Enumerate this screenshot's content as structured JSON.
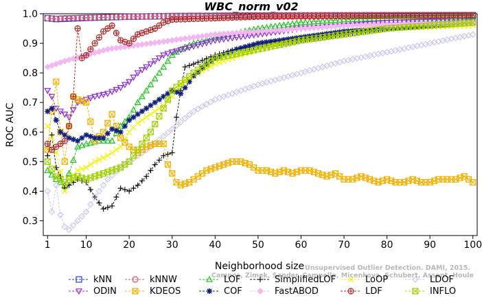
{
  "chart_data": {
    "type": "line",
    "title": "WBC_norm_v02",
    "xlabel": "Neighborhood size",
    "ylabel": "ROC AUC",
    "xlim": [
      0,
      101
    ],
    "ylim": [
      0.25,
      1.0
    ],
    "x_ticks": [
      1,
      10,
      20,
      30,
      40,
      50,
      60,
      70,
      80,
      90,
      100
    ],
    "y_ticks": [
      0.3,
      0.4,
      0.5,
      0.6,
      0.7,
      0.8,
      0.9,
      1.0
    ],
    "grid": false,
    "legend_position": "bottom",
    "watermark": [
      "Unsupervised Outlier Detection. DAMI, 2015.",
      "Campos, Zimek, Sander, Campello, Micenkova, Schubert, Assent, Houle"
    ],
    "series": [
      {
        "name": "kNN",
        "color": "#1f3fd6",
        "marker": "square",
        "x": [
          1,
          3,
          5,
          10,
          20,
          30,
          50,
          100
        ],
        "values": [
          0.985,
          0.982,
          0.983,
          0.986,
          0.99,
          0.992,
          0.994,
          0.995
        ]
      },
      {
        "name": "kNNW",
        "color": "#e0506a",
        "marker": "circle",
        "x": [
          1,
          2,
          3,
          5,
          10,
          20,
          30,
          50,
          100
        ],
        "values": [
          0.985,
          0.984,
          0.983,
          0.985,
          0.987,
          0.99,
          0.992,
          0.994,
          0.995
        ]
      },
      {
        "name": "LOF",
        "color": "#1ec41e",
        "marker": "triangle-up",
        "x": [
          1,
          3,
          5,
          6,
          8,
          10,
          13,
          16,
          18,
          20,
          22,
          24,
          26,
          28,
          30,
          32,
          35,
          40,
          50,
          60,
          70,
          80,
          100
        ],
        "values": [
          0.47,
          0.44,
          0.42,
          0.46,
          0.55,
          0.56,
          0.57,
          0.57,
          0.62,
          0.65,
          0.7,
          0.74,
          0.78,
          0.82,
          0.86,
          0.88,
          0.9,
          0.92,
          0.95,
          0.97,
          0.98,
          0.985,
          0.99
        ]
      },
      {
        "name": "SimplifiedLOF",
        "color": "#111111",
        "marker": "plus",
        "x": [
          1,
          2,
          3,
          4,
          5,
          6,
          8,
          10,
          12,
          14,
          16,
          18,
          20,
          22,
          24,
          26,
          28,
          30,
          31,
          32,
          33,
          35,
          40,
          45,
          50,
          60,
          70,
          80,
          100
        ],
        "values": [
          0.52,
          0.59,
          0.48,
          0.45,
          0.41,
          0.42,
          0.44,
          0.43,
          0.38,
          0.34,
          0.35,
          0.41,
          0.4,
          0.42,
          0.45,
          0.49,
          0.52,
          0.53,
          0.65,
          0.74,
          0.82,
          0.83,
          0.86,
          0.88,
          0.89,
          0.91,
          0.93,
          0.95,
          0.97
        ]
      },
      {
        "name": "LoOP",
        "color": "#f2f200",
        "marker": "x",
        "x": [
          1,
          2,
          3,
          5,
          6,
          8,
          10,
          12,
          15,
          18,
          20,
          22,
          25,
          28,
          30,
          32,
          35,
          40,
          50,
          60,
          70,
          80,
          100
        ],
        "values": [
          0.62,
          0.58,
          0.53,
          0.4,
          0.44,
          0.47,
          0.48,
          0.5,
          0.52,
          0.55,
          0.6,
          0.63,
          0.66,
          0.69,
          0.72,
          0.76,
          0.79,
          0.83,
          0.88,
          0.92,
          0.94,
          0.95,
          0.96
        ]
      },
      {
        "name": "LDOF",
        "color": "#c8c8ee",
        "marker": "diamond",
        "x": [
          1,
          2,
          3,
          4,
          5,
          6,
          8,
          10,
          12,
          15,
          18,
          20,
          25,
          30,
          35,
          40,
          50,
          60,
          70,
          80,
          90,
          100
        ],
        "values": [
          0.4,
          0.33,
          0.42,
          0.32,
          0.28,
          0.27,
          0.3,
          0.33,
          0.38,
          0.44,
          0.48,
          0.5,
          0.55,
          0.61,
          0.67,
          0.71,
          0.76,
          0.8,
          0.84,
          0.87,
          0.9,
          0.93
        ]
      },
      {
        "name": "ODIN",
        "color": "#8a2ad6",
        "marker": "triangle-down",
        "x": [
          1,
          2,
          3,
          5,
          6,
          8,
          10,
          12,
          15,
          18,
          20,
          22,
          24,
          26,
          28,
          30,
          35,
          40,
          50,
          60,
          70,
          80,
          100
        ],
        "values": [
          0.74,
          0.72,
          0.68,
          0.66,
          0.65,
          0.7,
          0.71,
          0.72,
          0.73,
          0.75,
          0.77,
          0.8,
          0.82,
          0.84,
          0.86,
          0.87,
          0.89,
          0.91,
          0.93,
          0.95,
          0.96,
          0.97,
          0.98
        ]
      },
      {
        "name": "KDEOS",
        "color": "#f2b000",
        "marker": "square-x",
        "x": [
          1,
          2,
          3,
          4,
          5,
          6,
          7,
          8,
          10,
          12,
          14,
          16,
          18,
          20,
          22,
          24,
          26,
          28,
          29,
          30,
          31,
          32,
          34,
          36,
          38,
          40,
          42,
          44,
          46,
          48,
          50,
          52,
          54,
          56,
          58,
          60,
          62,
          64,
          66,
          68,
          70,
          72,
          74,
          76,
          78,
          80,
          82,
          84,
          86,
          88,
          90,
          92,
          94,
          96,
          98,
          100
        ],
        "values": [
          0.54,
          0.67,
          0.77,
          0.6,
          0.5,
          0.62,
          0.72,
          0.71,
          0.7,
          0.57,
          0.6,
          0.66,
          0.58,
          0.55,
          0.53,
          0.55,
          0.56,
          0.56,
          0.49,
          0.46,
          0.43,
          0.42,
          0.43,
          0.45,
          0.47,
          0.48,
          0.49,
          0.5,
          0.5,
          0.49,
          0.47,
          0.47,
          0.46,
          0.47,
          0.46,
          0.47,
          0.47,
          0.46,
          0.45,
          0.46,
          0.44,
          0.44,
          0.45,
          0.44,
          0.43,
          0.44,
          0.43,
          0.43,
          0.44,
          0.43,
          0.43,
          0.44,
          0.44,
          0.44,
          0.45,
          0.43
        ]
      },
      {
        "name": "COF",
        "color": "#10207a",
        "marker": "star",
        "x": [
          1,
          2,
          3,
          4,
          5,
          6,
          8,
          10,
          12,
          14,
          16,
          18,
          20,
          22,
          24,
          26,
          28,
          30,
          32,
          35,
          38,
          40,
          45,
          50,
          55,
          60,
          70,
          80,
          90,
          100
        ],
        "values": [
          0.67,
          0.68,
          0.64,
          0.6,
          0.59,
          0.58,
          0.57,
          0.59,
          0.58,
          0.58,
          0.61,
          0.6,
          0.64,
          0.66,
          0.68,
          0.7,
          0.72,
          0.74,
          0.73,
          0.79,
          0.83,
          0.85,
          0.88,
          0.9,
          0.91,
          0.92,
          0.94,
          0.95,
          0.96,
          0.97
        ]
      },
      {
        "name": "FastABOD",
        "color": "#f2b8f2",
        "marker": "diamond-filled",
        "x": [
          1,
          5,
          10,
          15,
          20,
          25,
          30,
          40,
          50,
          70,
          100
        ],
        "values": [
          0.82,
          0.84,
          0.86,
          0.88,
          0.89,
          0.9,
          0.91,
          0.93,
          0.94,
          0.96,
          0.97
        ]
      },
      {
        "name": "LDF",
        "color": "#b02828",
        "marker": "circle-plus",
        "x": [
          1,
          2,
          3,
          5,
          6,
          7,
          8,
          9,
          10,
          12,
          14,
          16,
          18,
          20,
          22,
          24,
          26,
          28,
          30,
          40,
          50,
          100
        ],
        "values": [
          0.56,
          0.54,
          0.55,
          0.57,
          0.62,
          0.72,
          0.95,
          0.85,
          0.86,
          0.9,
          0.94,
          0.96,
          0.91,
          0.9,
          0.93,
          0.94,
          0.95,
          0.97,
          0.98,
          0.985,
          0.99,
          0.995
        ]
      },
      {
        "name": "INFLO",
        "color": "#a0d000",
        "marker": "square-x",
        "x": [
          1,
          3,
          5,
          6,
          8,
          10,
          12,
          14,
          16,
          18,
          20,
          22,
          25,
          28,
          30,
          35,
          40,
          50,
          60,
          70,
          80,
          100
        ],
        "values": [
          0.5,
          0.45,
          0.43,
          0.44,
          0.45,
          0.44,
          0.45,
          0.46,
          0.47,
          0.48,
          0.5,
          0.54,
          0.6,
          0.68,
          0.74,
          0.8,
          0.85,
          0.88,
          0.91,
          0.93,
          0.95,
          0.97
        ]
      }
    ],
    "legend_rows": [
      [
        "kNN",
        "kNNW",
        "LOF",
        "SimplifiedLOF",
        "LoOP",
        "LDOF"
      ],
      [
        "ODIN",
        "KDEOS",
        "COF",
        "FastABOD",
        "LDF",
        "INFLO"
      ]
    ]
  }
}
